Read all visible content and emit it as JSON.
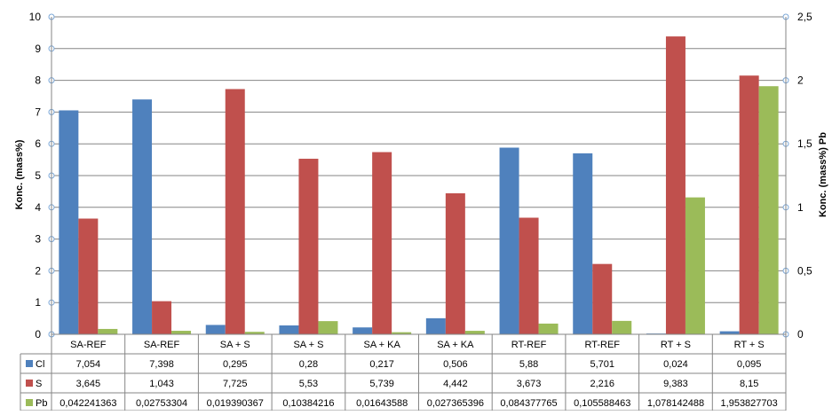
{
  "chart_data": {
    "type": "bar",
    "title": "",
    "xlabel": "",
    "ylabel": "Konc. (mass%)",
    "y2label": "Konc. (mass%) Pb",
    "ylim": [
      0,
      10
    ],
    "y2lim": [
      0,
      2.5
    ],
    "yticks": [
      "0",
      "1",
      "2",
      "3",
      "4",
      "5",
      "6",
      "7",
      "8",
      "9",
      "10"
    ],
    "y2ticks": [
      "0",
      "0,5",
      "1",
      "1,5",
      "2",
      "2,5"
    ],
    "grid": true,
    "legend": "data-table-left",
    "categories": [
      "SA-REF",
      "SA-REF",
      "SA + S",
      "SA + S",
      "SA + KA",
      "SA + KA",
      "RT-REF",
      "RT-REF",
      "RT + S",
      "RT + S"
    ],
    "series": [
      {
        "name": "Cl",
        "axis": "primary",
        "color": "#4F81BD",
        "values": [
          7.054,
          7.398,
          0.295,
          0.28,
          0.217,
          0.506,
          5.88,
          5.701,
          0.024,
          0.095
        ],
        "labels": [
          "7,054",
          "7,398",
          "0,295",
          "0,28",
          "0,217",
          "0,506",
          "5,88",
          "5,701",
          "0,024",
          "0,095"
        ]
      },
      {
        "name": "S",
        "axis": "primary",
        "color": "#C0504D",
        "values": [
          3.645,
          1.043,
          7.725,
          5.53,
          5.739,
          4.442,
          3.673,
          2.216,
          9.383,
          8.15
        ],
        "labels": [
          "3,645",
          "1,043",
          "7,725",
          "5,53",
          "5,739",
          "4,442",
          "3,673",
          "2,216",
          "9,383",
          "8,15"
        ]
      },
      {
        "name": "Pb",
        "axis": "secondary",
        "color": "#9BBB59",
        "values": [
          0.042241363,
          0.02753304,
          0.019390367,
          0.10384216,
          0.01643588,
          0.027365396,
          0.084377765,
          0.105588463,
          1.078142488,
          1.953827703
        ],
        "labels": [
          "0,042241363",
          "0,02753304",
          "0,019390367",
          "0,10384216",
          "0,01643588",
          "0,027365396",
          "0,084377765",
          "0,105588463",
          "1,078142488",
          "1,953827703"
        ]
      }
    ]
  }
}
